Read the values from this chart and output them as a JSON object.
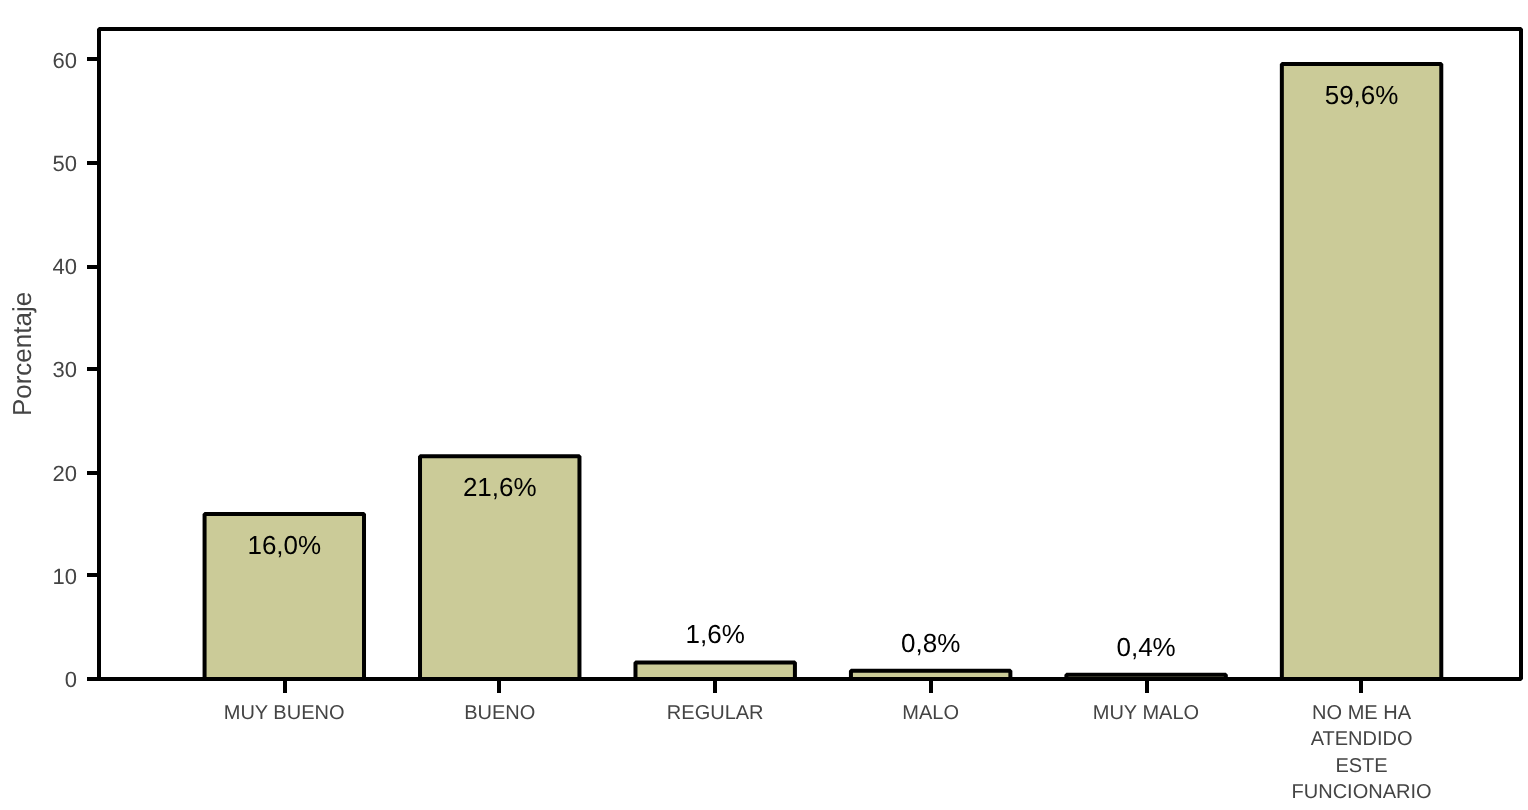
{
  "chart_data": {
    "type": "bar",
    "ylabel": "Porcentaje",
    "categories": [
      "MUY BUENO",
      "BUENO",
      "REGULAR",
      "MALO",
      "MUY MALO",
      "NO ME HA ATENDIDO ESTE FUNCIONARIO"
    ],
    "values": [
      16.0,
      21.6,
      1.6,
      0.8,
      0.4,
      59.6
    ],
    "value_labels": [
      "16,0%",
      "21,6%",
      "1,6%",
      "0,8%",
      "0,4%",
      "59,6%"
    ],
    "color": "#cbcb98",
    "ylim": [
      0,
      63
    ],
    "yticks": [
      0,
      10,
      20,
      30,
      40,
      50,
      60
    ],
    "grid": false
  }
}
